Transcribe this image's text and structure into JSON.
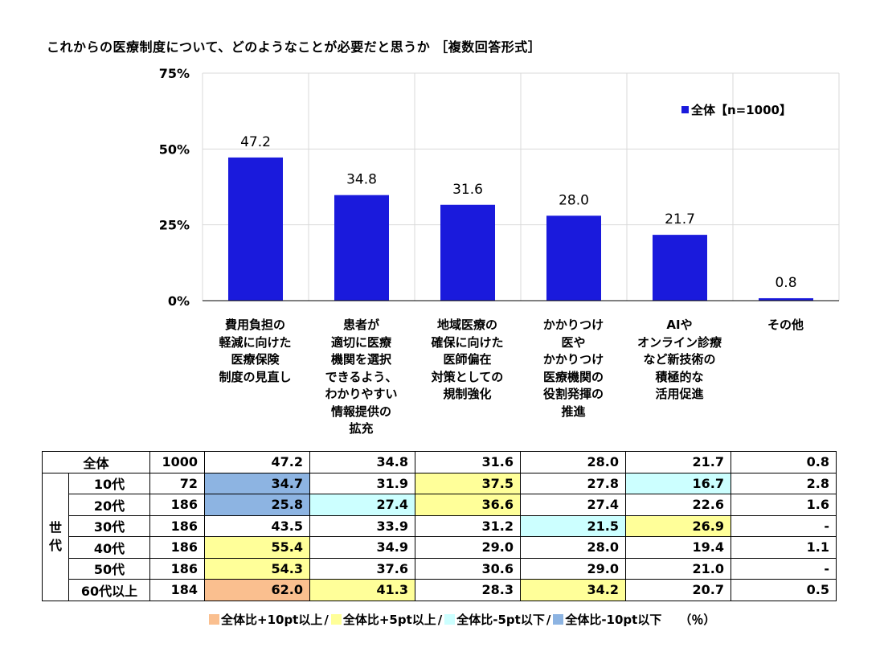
{
  "title": "これからの医療制度について、どのようなことが必要だと思うか ［複数回答形式］",
  "chart_data": {
    "type": "bar",
    "categories": [
      [
        "費用負担の",
        "軽減に向けた",
        "医療保険",
        "制度の見直し"
      ],
      [
        "患者が",
        "適切に医療",
        "機関を選択",
        "できるよう、",
        "わかりやすい",
        "情報提供の",
        "拡充"
      ],
      [
        "地域医療の",
        "確保に向けた",
        "医師偏在",
        "対策としての",
        "規制強化"
      ],
      [
        "かかりつけ",
        "医や",
        "かかりつけ",
        "医療機関の",
        "役割発揮の",
        "推進"
      ],
      [
        "AIや",
        "オンライン診療",
        "など新技術の",
        "積極的な",
        "活用促進"
      ],
      [
        "その他"
      ]
    ],
    "series": [
      {
        "name": "全体【n=1000】",
        "values": [
          47.2,
          34.8,
          31.6,
          28.0,
          21.7,
          0.8
        ]
      }
    ],
    "value_labels": [
      "47.2",
      "34.8",
      "31.6",
      "28.0",
      "21.7",
      "0.8"
    ],
    "yticks": [
      "0%",
      "25%",
      "50%",
      "75%"
    ],
    "ylim": [
      0,
      75
    ],
    "bar_color": "#1a1adc",
    "legend_position": "top-right",
    "grid": true
  },
  "table": {
    "total_row": {
      "label": "全体",
      "n": "1000",
      "values": [
        "47.2",
        "34.8",
        "31.6",
        "28.0",
        "21.7",
        "0.8"
      ]
    },
    "group_label": "世代",
    "rows": [
      {
        "label": "10代",
        "n": "72",
        "values": [
          "34.7",
          "31.9",
          "37.5",
          "27.8",
          "16.7",
          "2.8"
        ],
        "colors": [
          "#8db4e2",
          "",
          "#ffff99",
          "",
          "#ccffff",
          ""
        ]
      },
      {
        "label": "20代",
        "n": "186",
        "values": [
          "25.8",
          "27.4",
          "36.6",
          "27.4",
          "22.6",
          "1.6"
        ],
        "colors": [
          "#8db4e2",
          "#ccffff",
          "#ffff99",
          "",
          "",
          ""
        ]
      },
      {
        "label": "30代",
        "n": "186",
        "values": [
          "43.5",
          "33.9",
          "31.2",
          "21.5",
          "26.9",
          "-"
        ],
        "colors": [
          "",
          "",
          "",
          "#ccffff",
          "#ffff99",
          ""
        ]
      },
      {
        "label": "40代",
        "n": "186",
        "values": [
          "55.4",
          "34.9",
          "29.0",
          "28.0",
          "19.4",
          "1.1"
        ],
        "colors": [
          "#ffff99",
          "",
          "",
          "",
          "",
          ""
        ]
      },
      {
        "label": "50代",
        "n": "186",
        "values": [
          "54.3",
          "37.6",
          "30.6",
          "29.0",
          "21.0",
          "-"
        ],
        "colors": [
          "#ffff99",
          "",
          "",
          "",
          "",
          ""
        ]
      },
      {
        "label": "60代以上",
        "n": "184",
        "values": [
          "62.0",
          "41.3",
          "28.3",
          "34.2",
          "20.7",
          "0.5"
        ],
        "colors": [
          "#fabf8f",
          "#ffff99",
          "",
          "#ffff99",
          "",
          ""
        ]
      }
    ]
  },
  "legend": {
    "items": [
      {
        "color": "#fabf8f",
        "label": "全体比+10pt以上"
      },
      {
        "color": "#ffff99",
        "label": "全体比+5pt以上"
      },
      {
        "color": "#ccffff",
        "label": "全体比-5pt以下"
      },
      {
        "color": "#8db4e2",
        "label": "全体比-10pt以下"
      }
    ],
    "separator": "/",
    "unit": "（％）"
  }
}
